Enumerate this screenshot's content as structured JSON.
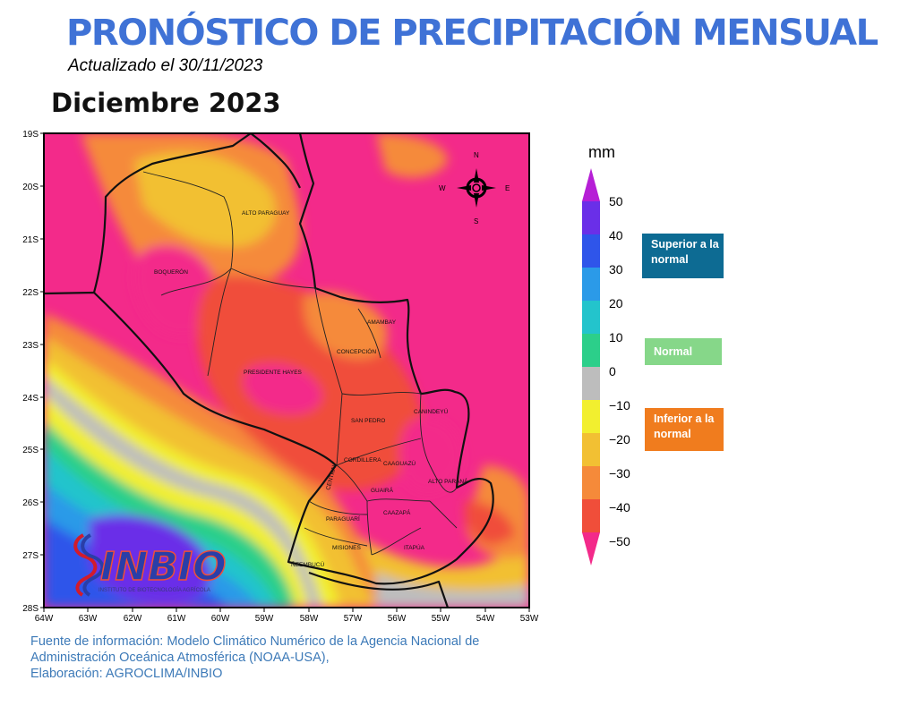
{
  "header": {
    "title": "PRONÓSTICO DE PRECIPITACIÓN MENSUAL",
    "updated": "Actualizado el 30/11/2023",
    "month": "Diciembre 2023"
  },
  "map": {
    "lat_ticks": [
      "19S",
      "20S",
      "21S",
      "22S",
      "23S",
      "24S",
      "25S",
      "26S",
      "27S",
      "28S"
    ],
    "lon_ticks": [
      "64W",
      "63W",
      "62W",
      "61W",
      "60W",
      "59W",
      "58W",
      "57W",
      "56W",
      "55W",
      "54W",
      "53W"
    ],
    "departments": [
      "ALTO PARAGUAY",
      "BOQUERÓN",
      "PRESIDENTE HAYES",
      "AMAMBAY",
      "CONCEPCIÓN",
      "SAN PEDRO",
      "CANINDEYÚ",
      "CORDILLERA",
      "CAAGUAZÚ",
      "CENTRAL",
      "GUAIRÁ",
      "ALTO PARANÁ",
      "CAAZAPÁ",
      "PARAGUARÍ",
      "MISIONES",
      "ITAPÚA",
      "ÑEEMBUCÚ"
    ],
    "compass": {
      "n": "N",
      "s": "S",
      "e": "E",
      "w": "W"
    },
    "logo": {
      "name": "INBIO",
      "subtitle": "INSTITUTO DE BIOTECNOLOGÍA AGRÍCOLA"
    }
  },
  "colorbar": {
    "unit": "mm",
    "labels": [
      "50",
      "40",
      "30",
      "20",
      "10",
      "0",
      "−10",
      "−20",
      "−30",
      "−40",
      "−50"
    ],
    "colors": [
      "#b61fd6",
      "#6a2fe8",
      "#2f55ea",
      "#2b9ae8",
      "#23c4cc",
      "#2ccf8a",
      "#bdbdbd",
      "#f2ef2f",
      "#f2c033",
      "#f58a3a",
      "#f04e3a",
      "#f32a8a"
    ]
  },
  "legend": {
    "superior": "Superior a la normal",
    "normal": "Normal",
    "inferior": "Inferior a la normal",
    "colors": {
      "superior": "#0d6b93",
      "normal": "#86d789",
      "inferior": "#f07c1e"
    }
  },
  "footer": {
    "line1": "Fuente de información: Modelo Climático Numérico de la Agencia Nacional de",
    "line2": "Administración Oceánica  Atmosférica (NOAA-USA),",
    "line3": "Elaboración: AGROCLIMA/INBIO"
  }
}
